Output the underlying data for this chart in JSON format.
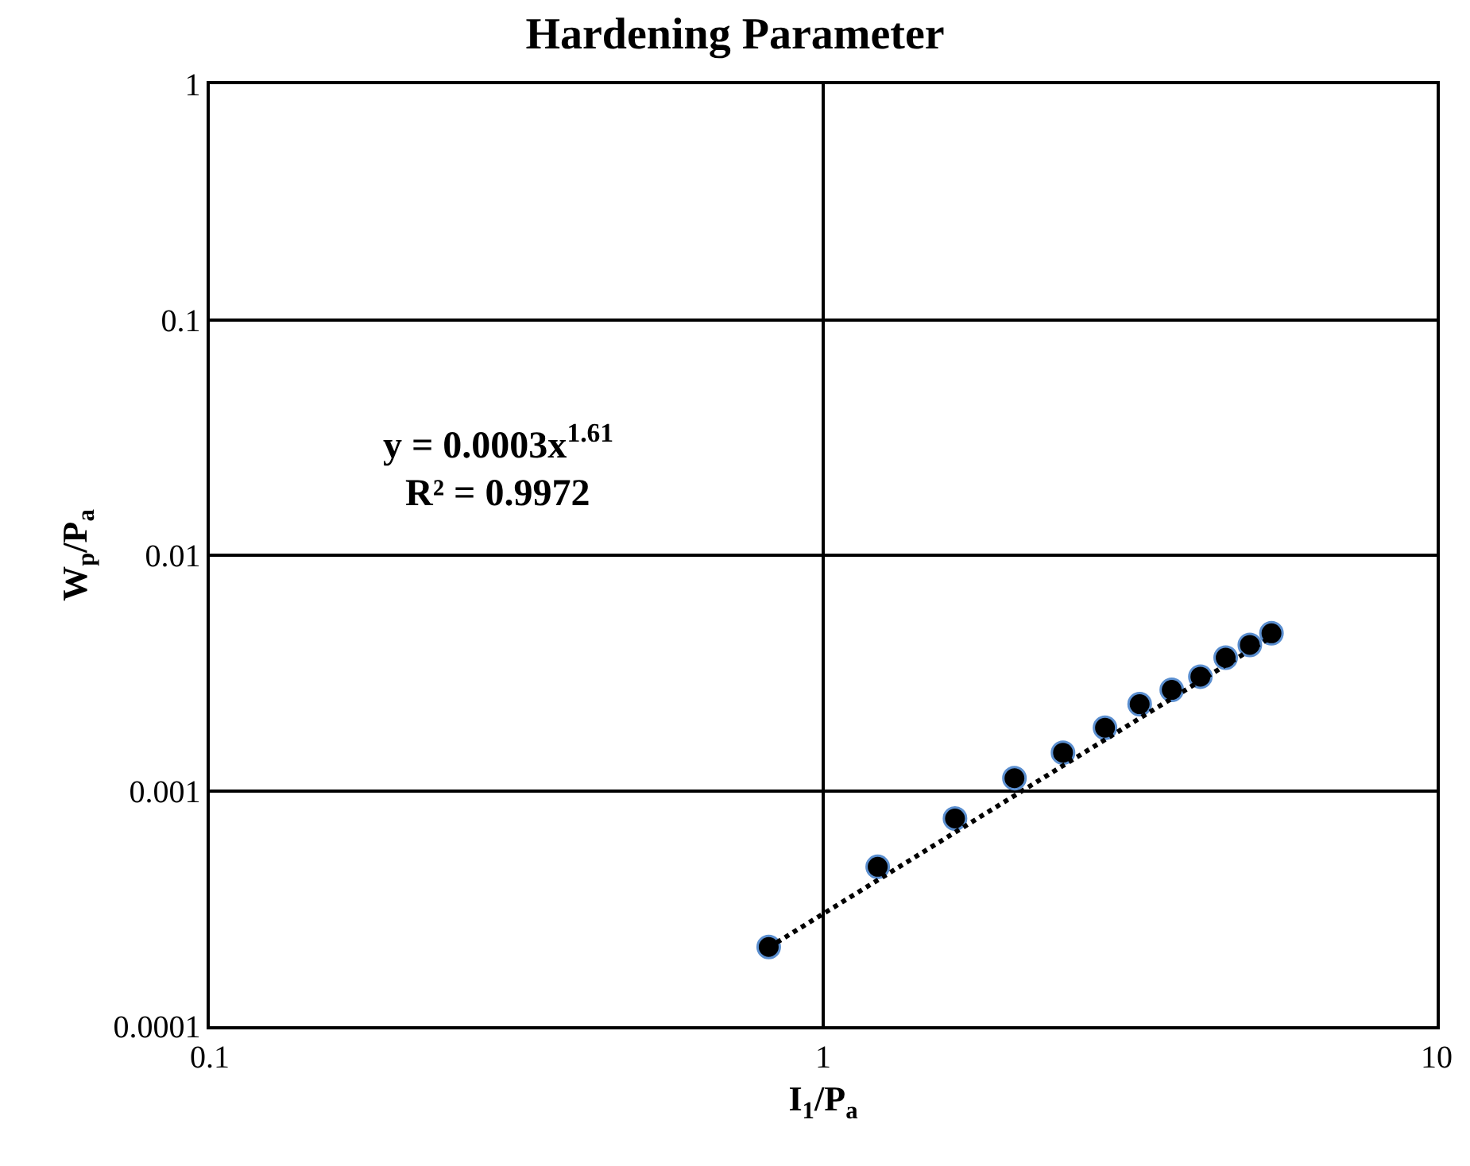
{
  "chart_data": {
    "type": "scatter",
    "title": "Hardening Parameter",
    "xlabel": "I$_{1}$/P$_{a}$",
    "ylabel": "W$_{p}$/P$_{a}$",
    "annotations": [
      "y = 0.0003x$^{1.61}$",
      "R² = 0.9972"
    ],
    "log": "xy",
    "grid": true,
    "xlim": [
      0.1,
      10
    ],
    "xticks": [
      0.1,
      1,
      10
    ],
    "ylim": [
      0.0001,
      1
    ],
    "yticks": [
      0.0001,
      0.001,
      0.01,
      0.1,
      1
    ],
    "series": [
      {
        "color": "#000000",
        "marker": "circle",
        "x": [
          0.815,
          1.227,
          1.64,
          2.05,
          2.46,
          2.88,
          3.28,
          3.7,
          4.12,
          4.53,
          4.96,
          5.38
        ],
        "values": [
          0.000217,
          0.000475,
          0.000762,
          0.00113,
          0.00145,
          0.00185,
          0.00233,
          0.00268,
          0.00305,
          0.00367,
          0.00416,
          0.00466
        ]
      },
      {
        "type": "line",
        "color": "#000000",
        "marker": "none",
        "line_style": "dotted",
        "x": [
          0.815,
          5.38
        ],
        "values": [
          0.000216,
          0.0045
        ]
      }
    ]
  }
}
